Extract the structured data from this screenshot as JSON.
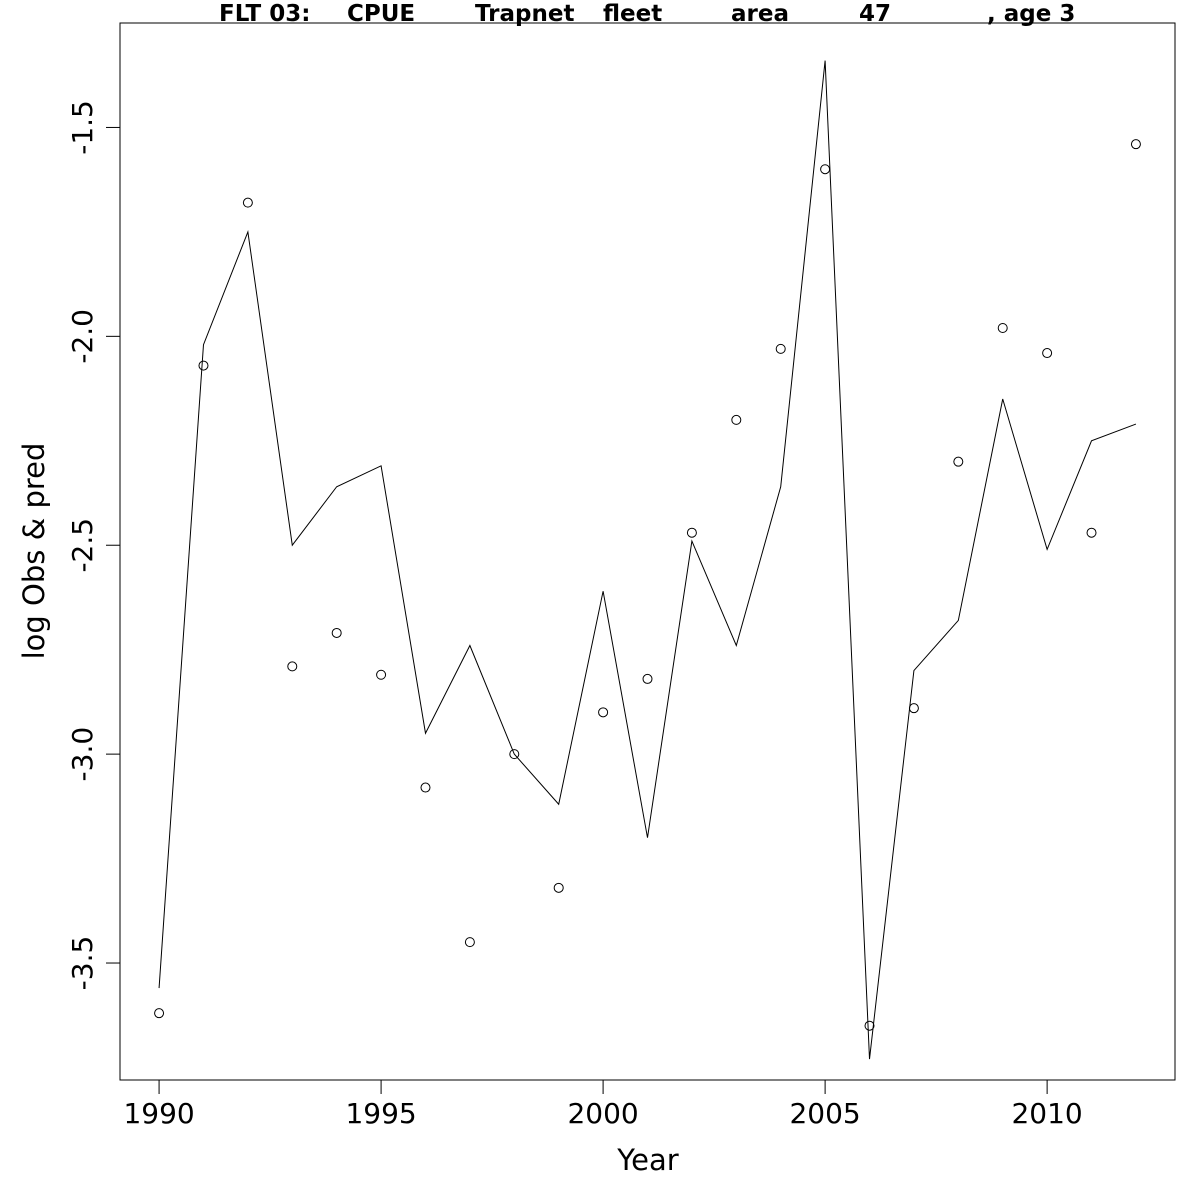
{
  "chart_data": {
    "type": "line",
    "title_parts": [
      "FLT 03:",
      "CPUE",
      "Trapnet",
      "fleet",
      "area",
      "47",
      ", age 3"
    ],
    "xlabel": "Year",
    "ylabel": "log Obs & pred",
    "xlim": [
      1989.12,
      2012.88
    ],
    "ylim": [
      -3.78,
      -1.25
    ],
    "xticks": [
      "1990",
      "1995",
      "2000",
      "2005",
      "2010"
    ],
    "yticks": [
      "-1.5",
      "-2.0",
      "-2.5",
      "-3.0",
      "-3.5"
    ],
    "grid": false,
    "x": [
      1990,
      1991,
      1992,
      1993,
      1994,
      1995,
      1996,
      1997,
      1998,
      1999,
      2000,
      2001,
      2002,
      2003,
      2004,
      2005,
      2006,
      2007,
      2008,
      2009,
      2010,
      2011,
      2012
    ],
    "series": [
      {
        "style": "line",
        "color": "#000000",
        "values": [
          -3.56,
          -2.02,
          -1.75,
          -2.5,
          -2.36,
          -2.31,
          -2.95,
          -2.74,
          -3.0,
          -3.12,
          -2.61,
          -3.2,
          -2.49,
          -2.74,
          -2.36,
          -1.34,
          -3.73,
          -2.8,
          -2.68,
          -2.15,
          -2.51,
          -2.25,
          -2.21
        ]
      },
      {
        "style": "points",
        "color": "#000000",
        "values": [
          -3.62,
          -2.07,
          -1.68,
          -2.79,
          -2.71,
          -2.81,
          -3.08,
          -3.45,
          -3.0,
          -3.32,
          -2.9,
          -2.82,
          -2.47,
          -2.2,
          -2.03,
          -1.6,
          -3.65,
          -2.89,
          -2.3,
          -1.98,
          -2.04,
          -2.47,
          -1.54
        ]
      }
    ]
  }
}
